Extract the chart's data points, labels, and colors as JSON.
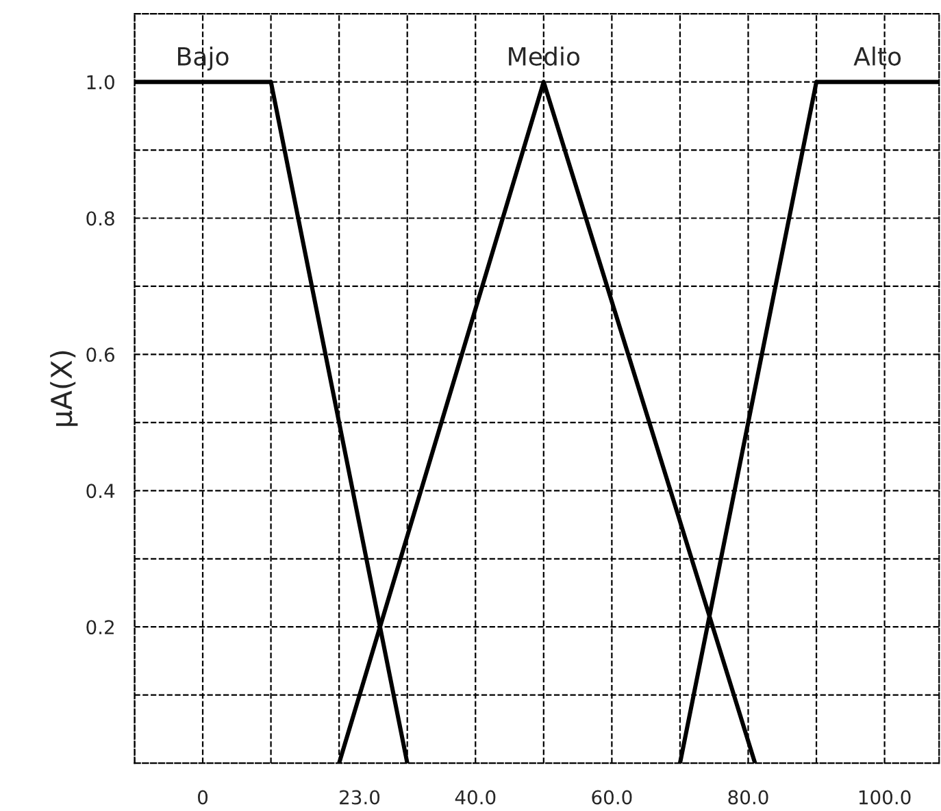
{
  "chart_data": {
    "type": "line",
    "ylabel": "µA(X)",
    "series": [
      {
        "name": "Bajo",
        "color": "#000000",
        "x": [
          -10,
          10,
          30
        ],
        "values": [
          1.0,
          1.0,
          0
        ]
      },
      {
        "name": "Medio",
        "color": "#000000",
        "x": [
          20,
          50,
          81
        ],
        "values": [
          0,
          1.0,
          0
        ]
      },
      {
        "name": "Alto",
        "color": "#000000",
        "x": [
          70,
          90,
          108
        ],
        "values": [
          0,
          1.0,
          1.0
        ]
      }
    ],
    "xlim": [
      -10,
      108
    ],
    "xticks": [
      {
        "value": -10,
        "label": null
      },
      {
        "value": 0,
        "label": "0"
      },
      {
        "value": 10,
        "label": null
      },
      {
        "value": 20,
        "label": null
      },
      {
        "value": 23,
        "label": "23.0"
      },
      {
        "value": 30,
        "label": null
      },
      {
        "value": 40,
        "label": "40.0"
      },
      {
        "value": 50,
        "label": null
      },
      {
        "value": 60,
        "label": "60.0"
      },
      {
        "value": 70,
        "label": null
      },
      {
        "value": 80,
        "label": "80.0"
      },
      {
        "value": 90,
        "label": null
      },
      {
        "value": 100,
        "label": "100.0"
      }
    ],
    "ylim": [
      0,
      1.1
    ],
    "yticks": [
      {
        "value": 0.1,
        "label": null
      },
      {
        "value": 0.2,
        "label": "0.2"
      },
      {
        "value": 0.3,
        "label": null
      },
      {
        "value": 0.4,
        "label": "0.4"
      },
      {
        "value": 0.5,
        "label": null
      },
      {
        "value": 0.6,
        "label": "0.6"
      },
      {
        "value": 0.7,
        "label": null
      },
      {
        "value": 0.8,
        "label": "0.8"
      },
      {
        "value": 0.9,
        "label": null
      },
      {
        "value": 1.0,
        "label": "1.0"
      }
    ],
    "grid": true,
    "legend": false,
    "marker": "none",
    "line_style": "solid"
  }
}
